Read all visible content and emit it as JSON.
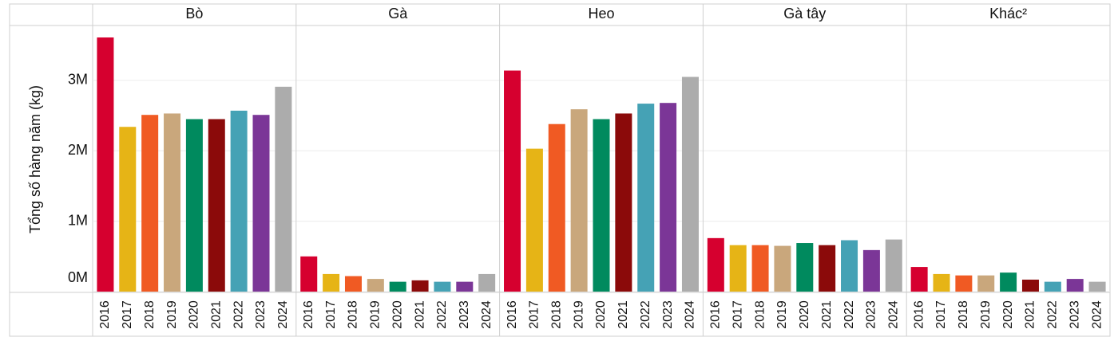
{
  "chart_data": {
    "type": "bar",
    "y_label": "Tổng số hàng năm (kg)",
    "categories": [
      "2016",
      "2017",
      "2018",
      "2019",
      "2020",
      "2021",
      "2022",
      "2023",
      "2024"
    ],
    "colors": [
      "#d6002f",
      "#e6b416",
      "#f05a23",
      "#c9a77c",
      "#008a5e",
      "#8b0a0a",
      "#45a2b5",
      "#7b3697",
      "#acacac"
    ],
    "series": [
      {
        "name": "Bò",
        "values": [
          3610000,
          2340000,
          2510000,
          2530000,
          2450000,
          2450000,
          2570000,
          2510000,
          2910000
        ]
      },
      {
        "name": "Gà",
        "values": [
          500000,
          250000,
          220000,
          180000,
          140000,
          160000,
          140000,
          140000,
          250000
        ]
      },
      {
        "name": "Heo",
        "values": [
          3140000,
          2030000,
          2380000,
          2590000,
          2450000,
          2530000,
          2670000,
          2680000,
          3050000
        ]
      },
      {
        "name": "Gà tây",
        "values": [
          760000,
          660000,
          660000,
          650000,
          690000,
          660000,
          730000,
          590000,
          740000
        ]
      },
      {
        "name": "Khác²",
        "values": [
          350000,
          250000,
          230000,
          230000,
          270000,
          170000,
          140000,
          180000,
          140000
        ]
      }
    ],
    "ylim": [
      0,
      3780000
    ],
    "yticks": [
      {
        "value": 0,
        "label": "0M"
      },
      {
        "value": 1000000,
        "label": "1M"
      },
      {
        "value": 2000000,
        "label": "2M"
      },
      {
        "value": 3000000,
        "label": "3M"
      }
    ],
    "grid": true
  }
}
